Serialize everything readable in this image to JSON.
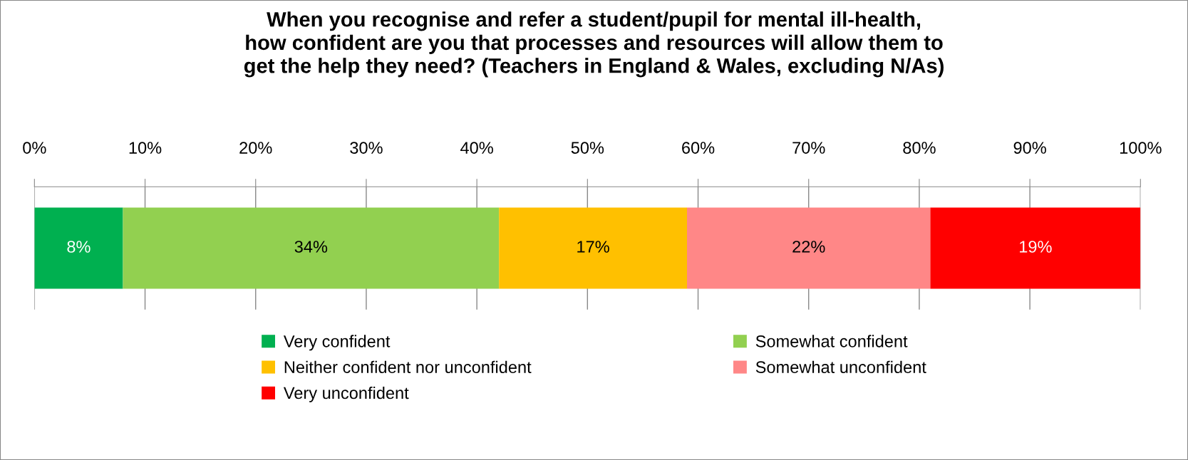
{
  "chart_data": {
    "type": "bar",
    "orientation": "horizontal",
    "stacked": true,
    "title": "When you recognise and refer a student/pupil for mental ill-health,\nhow confident are you that processes and resources will allow them to\nget the help they need? (Teachers in England & Wales, excluding N/As)",
    "categories": [
      null
    ],
    "series": [
      {
        "name": "Very confident",
        "color": "#00b050",
        "values": [
          8
        ],
        "value_labels": [
          "8%"
        ]
      },
      {
        "name": "Somewhat confident",
        "color": "#92d050",
        "values": [
          34
        ],
        "value_labels": [
          "34%"
        ]
      },
      {
        "name": "Neither confident nor unconfident",
        "color": "#ffc000",
        "values": [
          17
        ],
        "value_labels": [
          "17%"
        ]
      },
      {
        "name": "Somewhat unconfident",
        "color": "#ff8787",
        "values": [
          22
        ],
        "value_labels": [
          "22%"
        ]
      },
      {
        "name": "Very unconfident",
        "color": "#ff0000",
        "values": [
          19
        ],
        "value_labels": [
          "19%"
        ]
      }
    ],
    "xlim": [
      0,
      100
    ],
    "xticks": [
      {
        "value": 0,
        "label": "0%"
      },
      {
        "value": 10,
        "label": "10%"
      },
      {
        "value": 20,
        "label": "20%"
      },
      {
        "value": 30,
        "label": "30%"
      },
      {
        "value": 40,
        "label": "40%"
      },
      {
        "value": 50,
        "label": "50%"
      },
      {
        "value": 60,
        "label": "60%"
      },
      {
        "value": 70,
        "label": "70%"
      },
      {
        "value": 80,
        "label": "80%"
      },
      {
        "value": 90,
        "label": "90%"
      },
      {
        "value": 100,
        "label": "100%"
      }
    ],
    "grid": "x",
    "legend": "bottom"
  }
}
